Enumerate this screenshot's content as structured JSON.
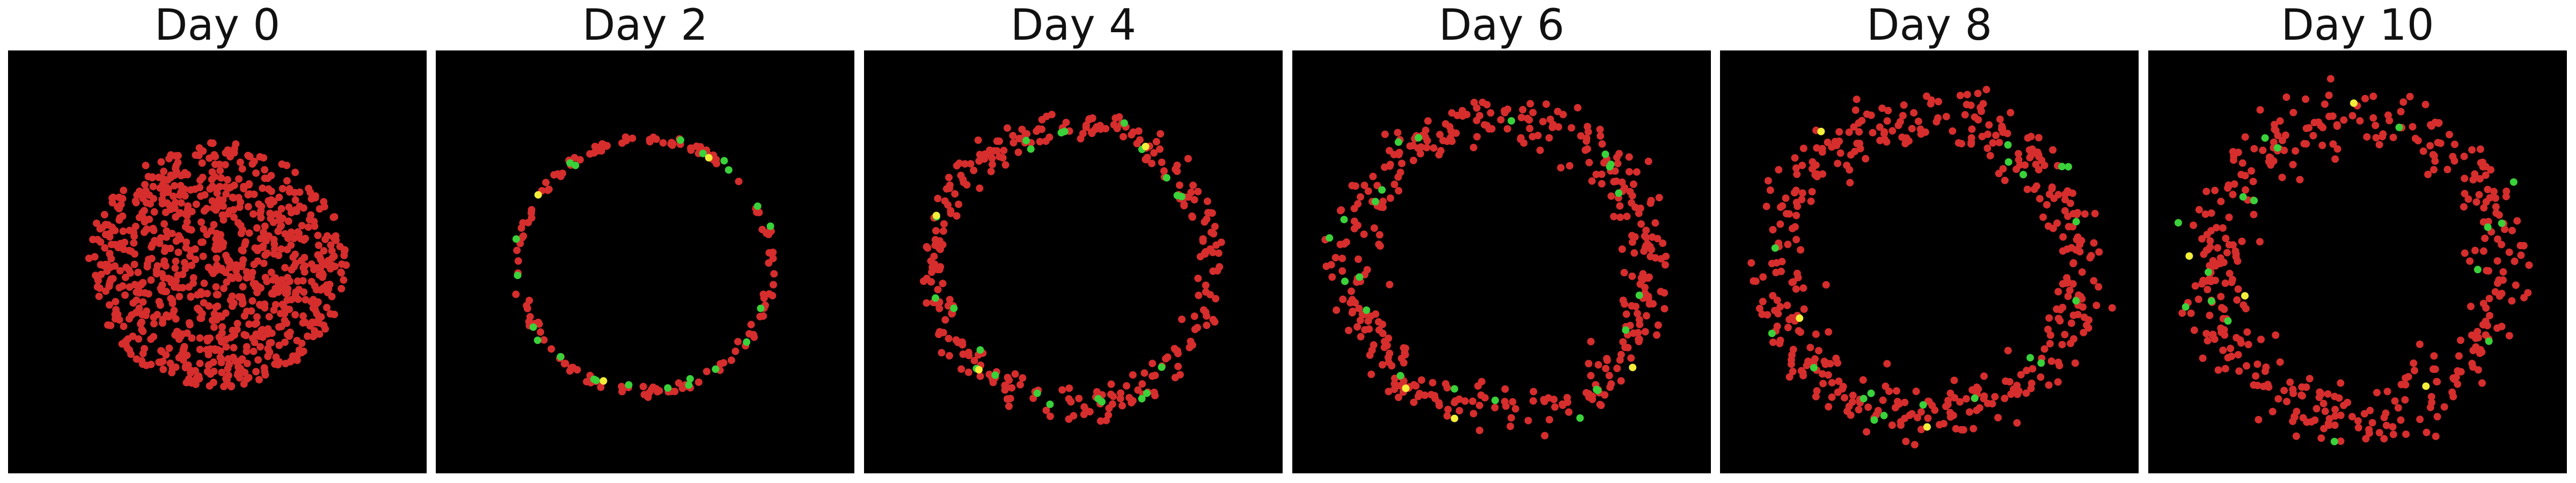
{
  "panels": [
    {
      "title": "Day 0",
      "pattern": "disk",
      "cells": {
        "red": 900,
        "green": 0,
        "yellow": 0
      }
    },
    {
      "title": "Day 2",
      "pattern": "ring",
      "cells": {
        "red": 150,
        "green": 22,
        "yellow": 3
      }
    },
    {
      "title": "Day 4",
      "pattern": "ring",
      "cells": {
        "red": 300,
        "green": 22,
        "yellow": 3
      }
    },
    {
      "title": "Day 6",
      "pattern": "ring",
      "cells": {
        "red": 380,
        "green": 22,
        "yellow": 3
      }
    },
    {
      "title": "Day 8",
      "pattern": "ring",
      "cells": {
        "red": 420,
        "green": 18,
        "yellow": 3
      }
    },
    {
      "title": "Day 10",
      "pattern": "ring",
      "cells": {
        "red": 400,
        "green": 16,
        "yellow": 4
      }
    }
  ],
  "colors": {
    "red": "#d62d2d",
    "green": "#3ad13a",
    "yellow": "#f2ee3a",
    "background": "#000000"
  }
}
